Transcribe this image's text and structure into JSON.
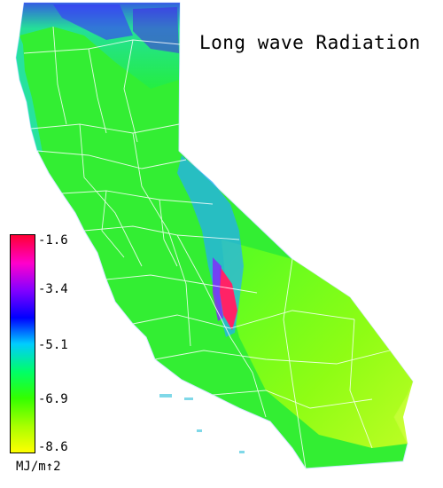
{
  "title": "Long wave Radiation",
  "colors": {
    "scale": [
      "#ff0033",
      "#ff00cc",
      "#8800ff",
      "#0000ff",
      "#00ccff",
      "#00ff66",
      "#33ff00",
      "#aaff00",
      "#ffff00"
    ],
    "state_fill_low": "#22ee44",
    "state_fill_mid": "#55ff22",
    "state_fill_high": "#ccff22",
    "county_lines": "#ffffff",
    "outline": "#a0c8e8"
  },
  "legend": {
    "ticks": [
      "-1.6",
      "-3.4",
      "-5.1",
      "-6.9",
      "-8.6"
    ],
    "unit": "MJ/m↑2"
  }
}
